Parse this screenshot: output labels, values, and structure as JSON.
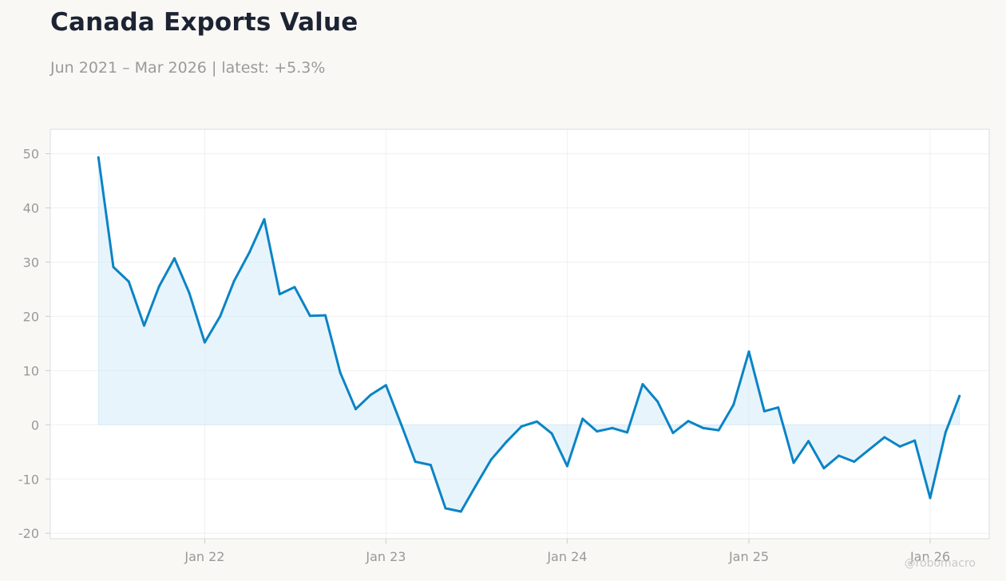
{
  "header": {
    "title": "Canada Exports Value",
    "subtitle": "Jun 2021 – Mar 2026 | latest: +5.3%"
  },
  "watermark": "@robomacro",
  "colors": {
    "background": "#f9f8f5",
    "line": "#0a84c6",
    "fill": "#d6ebf8",
    "grid": "#f0f0f0",
    "frame": "#dddddd"
  },
  "chart_data": {
    "type": "area",
    "title": "Canada Exports Value",
    "subtitle": "Jun 2021 – Mar 2026 | latest: +5.3%",
    "xlabel": "",
    "ylabel": "",
    "ylim": [
      -21,
      54.5
    ],
    "xlim": [
      "2021-02-24",
      "2026-04-30"
    ],
    "grid": true,
    "legend": "none",
    "yticks": [
      -20,
      -10,
      0,
      10,
      20,
      30,
      40,
      50
    ],
    "xticks": [
      {
        "date": "2022-01-01",
        "label": "Jan 22"
      },
      {
        "date": "2023-01-01",
        "label": "Jan 23"
      },
      {
        "date": "2024-01-01",
        "label": "Jan 24"
      },
      {
        "date": "2025-01-01",
        "label": "Jan 25"
      },
      {
        "date": "2026-01-01",
        "label": "Jan 26"
      }
    ],
    "series": [
      {
        "x": [
          "2021-06-01",
          "2021-07-01",
          "2021-08-01",
          "2021-09-01",
          "2021-10-01",
          "2021-11-01",
          "2021-12-01",
          "2022-01-01",
          "2022-02-01",
          "2022-03-01",
          "2022-04-01",
          "2022-05-01",
          "2022-06-01",
          "2022-07-01",
          "2022-08-01",
          "2022-09-01",
          "2022-10-01",
          "2022-11-01",
          "2022-12-01",
          "2023-01-01",
          "2023-02-01",
          "2023-03-01",
          "2023-04-01",
          "2023-05-01",
          "2023-06-01",
          "2023-07-01",
          "2023-08-01",
          "2023-09-01",
          "2023-10-01",
          "2023-11-01",
          "2023-12-01",
          "2024-01-01",
          "2024-02-01",
          "2024-03-01",
          "2024-04-01",
          "2024-05-01",
          "2024-06-01",
          "2024-07-01",
          "2024-08-01",
          "2024-09-01",
          "2024-10-01",
          "2024-11-01",
          "2024-12-01",
          "2025-01-01",
          "2025-02-01",
          "2025-03-01",
          "2025-04-01",
          "2025-05-01",
          "2025-06-01",
          "2025-07-01",
          "2025-08-01",
          "2025-09-01",
          "2025-10-01",
          "2025-11-01",
          "2025-12-01",
          "2026-01-01",
          "2026-02-01",
          "2026-03-01"
        ],
        "values": [
          49.3,
          29.1,
          26.4,
          18.3,
          25.5,
          30.7,
          24.3,
          15.2,
          20.0,
          26.5,
          31.8,
          37.9,
          24.1,
          25.4,
          20.1,
          20.2,
          9.6,
          2.9,
          5.5,
          7.3,
          0.0,
          -6.8,
          -7.4,
          -15.4,
          -16.0,
          -11.2,
          -6.4,
          -3.1,
          -0.3,
          0.6,
          -1.6,
          -7.6,
          1.1,
          -1.2,
          -0.6,
          -1.4,
          7.5,
          4.3,
          -1.5,
          0.7,
          -0.6,
          -1.0,
          3.7,
          13.5,
          2.5,
          3.2,
          -7.0,
          -3.0,
          -8.0,
          -5.7,
          -6.8,
          -4.5,
          -2.3,
          -4.0,
          -2.9,
          -13.5,
          -1.4,
          5.3
        ]
      }
    ]
  }
}
